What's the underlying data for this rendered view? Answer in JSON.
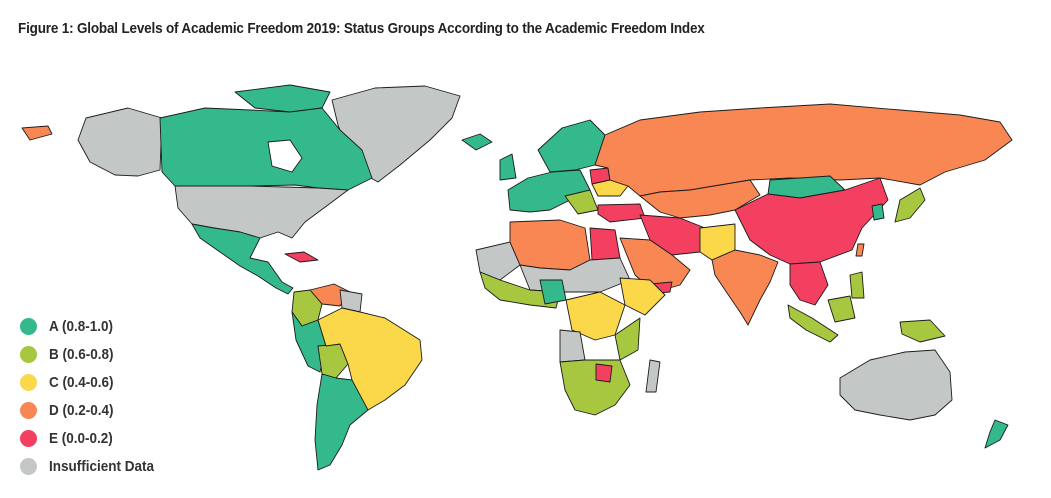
{
  "title": "Figure 1: Global Levels of Academic Freedom 2019: Status Groups According to the Academic Freedom Index",
  "colors": {
    "A": "#34b98c",
    "B": "#a6c73f",
    "C": "#fbd74a",
    "D": "#f98753",
    "E": "#f33f60",
    "NA": "#c3c8c7"
  },
  "legend": [
    {
      "key": "A",
      "label": "A (0.8-1.0)"
    },
    {
      "key": "B",
      "label": "B (0.6-0.8)"
    },
    {
      "key": "C",
      "label": "C (0.4-0.6)"
    },
    {
      "key": "D",
      "label": "D (0.2-0.4)"
    },
    {
      "key": "E",
      "label": "E (0.0-0.2)"
    },
    {
      "key": "NA",
      "label": "Insufficient Data"
    }
  ]
}
